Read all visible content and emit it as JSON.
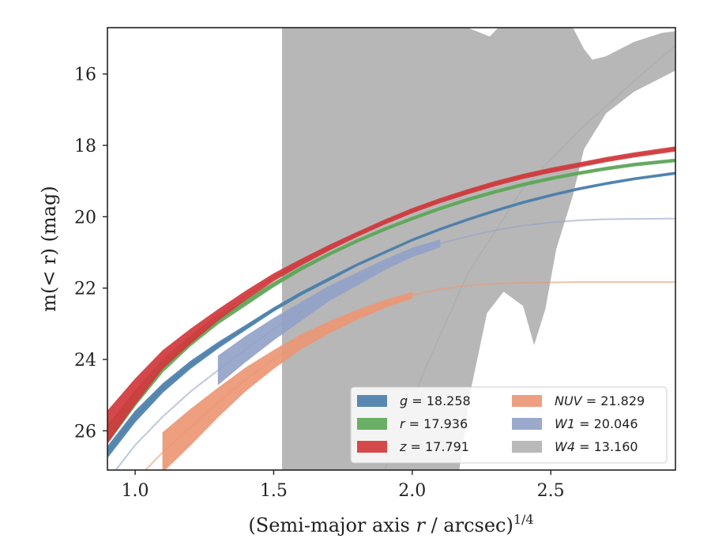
{
  "chart_data": {
    "type": "line",
    "xlabel_main": "(Semi-major axis ",
    "xlabel_var": "r",
    "xlabel_unit": " / arcsec)",
    "xlabel_exp": "1/4",
    "ylabel": "m(< r) (mag)",
    "xlim": [
      0.9,
      2.95
    ],
    "ylim": [
      27.1,
      14.7
    ],
    "y_inverted": true,
    "x_ticks": [
      1.0,
      1.5,
      2.0,
      2.5
    ],
    "x_tick_labels": [
      "1.0",
      "1.5",
      "2.0",
      "2.5"
    ],
    "y_ticks": [
      16,
      18,
      20,
      22,
      24,
      26
    ],
    "y_tick_labels": [
      "16",
      "18",
      "20",
      "22",
      "24",
      "26"
    ],
    "grid": false,
    "legend_position": "lower-right",
    "series": [
      {
        "name": "g = 18.258",
        "label_var": "g",
        "label_val": "= 18.258",
        "color": "#4b7fab",
        "x": [
          0.9,
          1.0,
          1.1,
          1.2,
          1.3,
          1.4,
          1.5,
          1.6,
          1.7,
          1.8,
          1.9,
          2.0,
          2.1,
          2.2,
          2.3,
          2.4,
          2.5,
          2.6,
          2.7,
          2.8,
          2.95
        ],
        "y": [
          26.6,
          25.6,
          24.8,
          24.15,
          23.6,
          23.1,
          22.6,
          22.15,
          21.75,
          21.35,
          21.0,
          20.65,
          20.35,
          20.08,
          19.83,
          19.6,
          19.4,
          19.22,
          19.07,
          18.94,
          18.78
        ],
        "band": [
          0.15,
          0.15,
          0.12,
          0.1,
          0.08,
          0.06,
          0.05,
          0.04,
          0.04,
          0.03,
          0.03,
          0.03,
          0.03,
          0.03,
          0.03,
          0.03,
          0.03,
          0.03,
          0.03,
          0.03,
          0.03
        ],
        "solid_until": 2.95
      },
      {
        "name": "r = 17.936",
        "label_var": "r",
        "label_val": "= 17.936",
        "color": "#5ea758",
        "x": [
          0.9,
          1.0,
          1.1,
          1.2,
          1.3,
          1.4,
          1.5,
          1.6,
          1.7,
          1.8,
          1.9,
          2.0,
          2.1,
          2.2,
          2.3,
          2.4,
          2.5,
          2.6,
          2.7,
          2.8,
          2.95
        ],
        "y": [
          26.1,
          25.1,
          24.2,
          23.5,
          22.9,
          22.4,
          21.9,
          21.45,
          21.05,
          20.68,
          20.35,
          20.05,
          19.77,
          19.52,
          19.3,
          19.1,
          18.93,
          18.78,
          18.65,
          18.54,
          18.42
        ],
        "band": [
          0.25,
          0.2,
          0.15,
          0.12,
          0.1,
          0.08,
          0.06,
          0.05,
          0.04,
          0.04,
          0.04,
          0.04,
          0.04,
          0.04,
          0.04,
          0.04,
          0.04,
          0.04,
          0.04,
          0.04,
          0.04
        ],
        "solid_until": 2.95
      },
      {
        "name": "z = 17.791",
        "label_var": "z",
        "label_val": "= 17.791",
        "color": "#d1393c",
        "x": [
          0.9,
          1.0,
          1.1,
          1.2,
          1.3,
          1.4,
          1.5,
          1.6,
          1.7,
          1.8,
          1.9,
          2.0,
          2.1,
          2.2,
          2.3,
          2.4,
          2.5,
          2.6,
          2.7,
          2.8,
          2.95
        ],
        "y": [
          25.9,
          24.9,
          24.0,
          23.35,
          22.75,
          22.2,
          21.7,
          21.27,
          20.87,
          20.5,
          20.15,
          19.83,
          19.55,
          19.3,
          19.07,
          18.87,
          18.7,
          18.55,
          18.4,
          18.27,
          18.1
        ],
        "band": [
          0.45,
          0.35,
          0.25,
          0.2,
          0.15,
          0.12,
          0.1,
          0.08,
          0.07,
          0.06,
          0.06,
          0.06,
          0.06,
          0.06,
          0.06,
          0.06,
          0.06,
          0.06,
          0.06,
          0.06,
          0.06
        ],
        "solid_until": 2.95
      },
      {
        "name": "NUV = 21.829",
        "label_var": "NUV",
        "label_val": "= 21.829",
        "color": "#ec9776",
        "x": [
          0.9,
          1.0,
          1.1,
          1.2,
          1.3,
          1.4,
          1.5,
          1.6,
          1.7,
          1.8,
          1.9,
          2.0,
          2.1,
          2.2,
          2.3,
          2.4,
          2.5,
          2.6,
          2.7,
          2.8,
          2.95
        ],
        "y": [
          28.2,
          27.4,
          26.6,
          25.9,
          25.2,
          24.55,
          24.0,
          23.5,
          23.1,
          22.75,
          22.45,
          22.2,
          22.03,
          21.93,
          21.87,
          21.85,
          21.84,
          21.83,
          21.83,
          21.83,
          21.83
        ],
        "band": [
          0.6,
          0.6,
          0.55,
          0.5,
          0.4,
          0.32,
          0.25,
          0.2,
          0.16,
          0.13,
          0.1,
          0.08,
          0.08,
          0.08,
          0.08,
          0.08,
          0.08,
          0.08,
          0.08,
          0.08,
          0.08
        ],
        "solid_from": 1.1,
        "solid_until": 1.98
      },
      {
        "name": "W1 = 20.046",
        "label_var": "W1",
        "label_val": "= 20.046",
        "color": "#93a2c9",
        "x": [
          0.9,
          1.0,
          1.1,
          1.2,
          1.3,
          1.4,
          1.5,
          1.6,
          1.7,
          1.8,
          1.9,
          2.0,
          2.1,
          2.2,
          2.3,
          2.4,
          2.5,
          2.6,
          2.7,
          2.8,
          2.95
        ],
        "y": [
          27.4,
          26.4,
          25.6,
          24.9,
          24.3,
          23.7,
          23.15,
          22.65,
          22.15,
          21.75,
          21.35,
          21.0,
          20.75,
          20.55,
          20.38,
          20.25,
          20.16,
          20.1,
          20.07,
          20.06,
          20.05
        ],
        "band": [
          0.4,
          0.4,
          0.4,
          0.4,
          0.4,
          0.35,
          0.3,
          0.25,
          0.2,
          0.17,
          0.14,
          0.12,
          0.1,
          0.1,
          0.1,
          0.1,
          0.1,
          0.1,
          0.1,
          0.1,
          0.1
        ],
        "solid_from": 1.29,
        "solid_until": 2.1
      }
    ],
    "w4_band": {
      "name": "W4 = 13.160",
      "label_var": "W4",
      "label_val": "= 13.160",
      "color": "#b3b3b3",
      "upper_x": [
        1.53,
        2.2,
        2.28,
        2.31,
        2.38,
        2.44,
        2.5,
        2.55,
        2.58,
        2.62,
        2.65,
        2.7,
        2.8,
        2.9,
        2.95
      ],
      "upper_y": [
        14.7,
        14.7,
        14.95,
        14.7,
        14.7,
        14.7,
        14.7,
        14.7,
        14.7,
        15.3,
        15.6,
        15.5,
        15.1,
        14.85,
        14.8
      ],
      "lower_x": [
        1.53,
        2.17,
        2.21,
        2.27,
        2.33,
        2.4,
        2.44,
        2.48,
        2.52,
        2.58,
        2.62,
        2.7,
        2.8,
        2.9,
        2.95
      ],
      "lower_y": [
        27.1,
        27.1,
        24.9,
        22.7,
        22.1,
        22.5,
        23.6,
        22.6,
        20.9,
        19.4,
        18.1,
        17.1,
        16.5,
        16.1,
        15.9
      ],
      "line_x": [
        1.9,
        2.05,
        2.2,
        2.4,
        2.6,
        2.8,
        2.95
      ],
      "line_y": [
        27.1,
        24.2,
        21.6,
        19.2,
        17.6,
        16.2,
        15.2
      ]
    }
  }
}
